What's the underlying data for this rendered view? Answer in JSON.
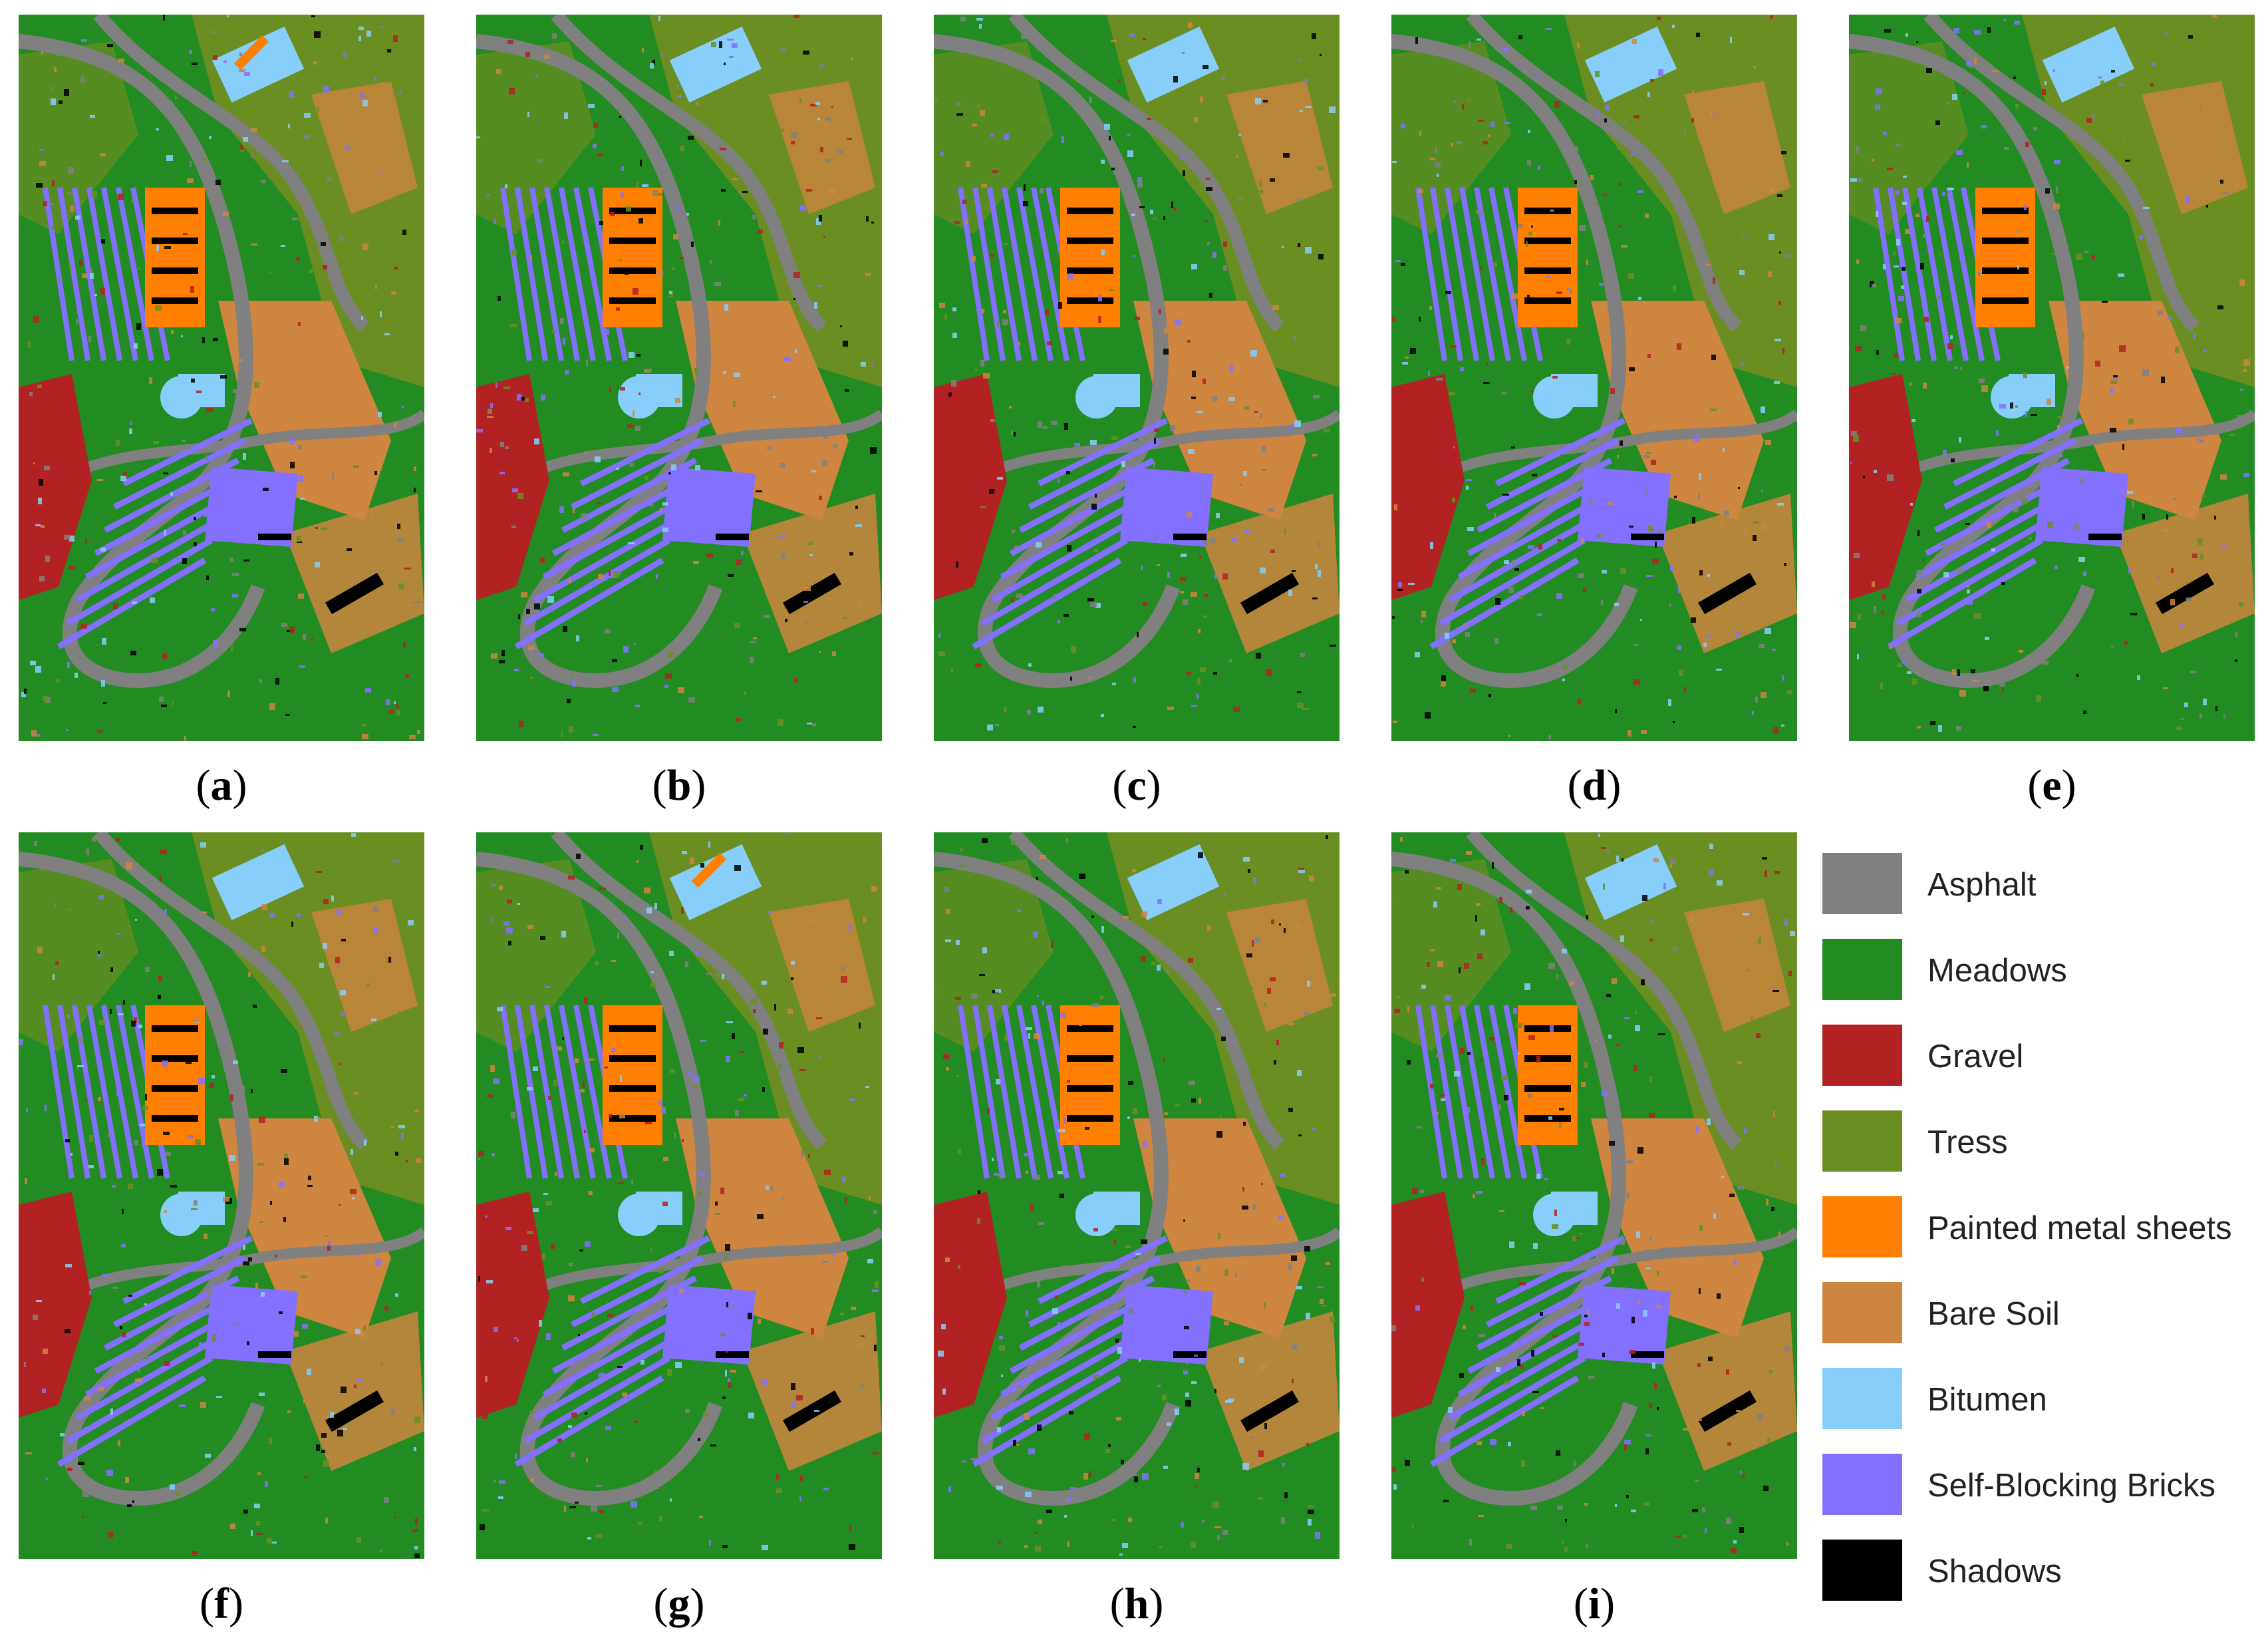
{
  "panels": [
    {
      "label": "a"
    },
    {
      "label": "b"
    },
    {
      "label": "c"
    },
    {
      "label": "d"
    },
    {
      "label": "e"
    },
    {
      "label": "f"
    },
    {
      "label": "g"
    },
    {
      "label": "h"
    },
    {
      "label": "i"
    }
  ],
  "legend": [
    {
      "label": "Asphalt",
      "color": "#808080"
    },
    {
      "label": "Meadows",
      "color": "#228B22"
    },
    {
      "label": "Gravel",
      "color": "#B22222"
    },
    {
      "label": "Tress",
      "color": "#6B8E23"
    },
    {
      "label": "Painted metal sheets",
      "color": "#FF8000"
    },
    {
      "label": "Bare Soil",
      "color": "#CD853F"
    },
    {
      "label": "Bitumen",
      "color": "#87CEFA"
    },
    {
      "label": "Self-Blocking Bricks",
      "color": "#8470FF"
    },
    {
      "label": "Shadows",
      "color": "#000000"
    }
  ]
}
